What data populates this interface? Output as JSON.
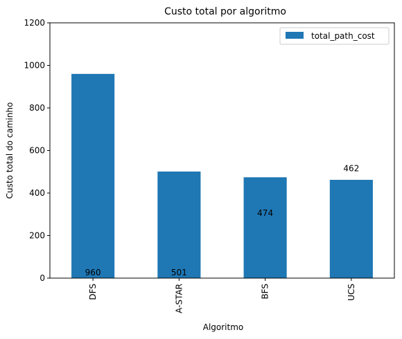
{
  "chart_data": {
    "type": "bar",
    "title": "Custo total por algoritmo",
    "xlabel": "Algoritmo",
    "ylabel": "Custo total do caminho",
    "categories": [
      "DFS",
      "A-STAR",
      "BFS",
      "UCS"
    ],
    "series": [
      {
        "name": "total_path_cost",
        "values": [
          960,
          501,
          474,
          462
        ],
        "color": "#1f77b4"
      }
    ],
    "data_labels": [
      "960",
      "501",
      "474",
      "462"
    ],
    "ylim": [
      0,
      1200
    ],
    "yticks": [
      0,
      200,
      400,
      600,
      800,
      1000,
      1200
    ],
    "grid": false,
    "legend_position": "top-right"
  }
}
